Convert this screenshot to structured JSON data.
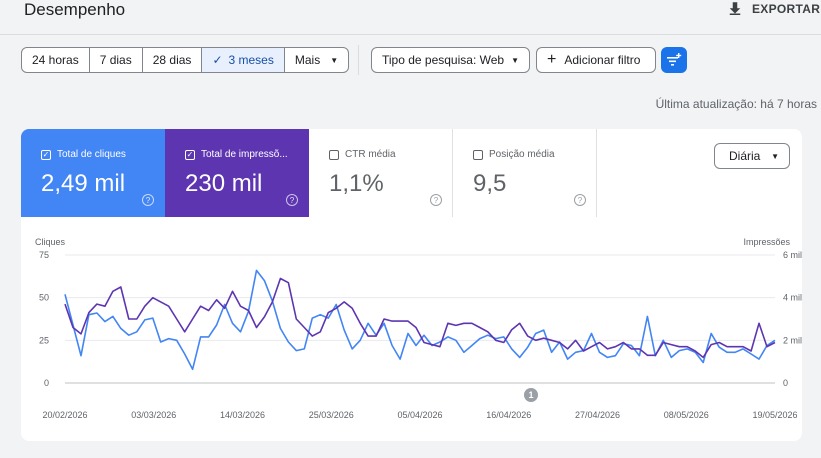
{
  "header": {
    "title": "Desempenho",
    "export_label": "EXPORTAR"
  },
  "date_range": {
    "options": [
      "24 horas",
      "7 dias",
      "28 dias",
      "3 meses",
      "Mais"
    ],
    "selected": "3 meses"
  },
  "filters": {
    "search_type": "Tipo de pesquisa: Web",
    "add_filter": "Adicionar filtro"
  },
  "last_updated": "Última atualização: há 7 horas",
  "metrics": [
    {
      "label": "Total de cliques",
      "value": "2,49 mil",
      "checked": true,
      "color": "#4285f4"
    },
    {
      "label": "Total de impressõ...",
      "value": "230 mil",
      "checked": true,
      "color": "#5e35b1"
    },
    {
      "label": "CTR média",
      "value": "1,1%",
      "checked": false
    },
    {
      "label": "Posição média",
      "value": "9,5",
      "checked": false
    }
  ],
  "granularity": "Diária",
  "annotation_badge": "1",
  "chart_data": {
    "type": "line",
    "left_axis": {
      "label": "Cliques",
      "ticks": [
        "75",
        "50",
        "25",
        "0"
      ],
      "range": [
        0,
        75
      ]
    },
    "right_axis": {
      "label": "Impressões",
      "ticks": [
        "6 mil",
        "4 mil",
        "2 mil",
        "0"
      ],
      "range": [
        0,
        6000
      ]
    },
    "x_tick_labels": [
      "20/02/2026",
      "03/03/2026",
      "14/03/2026",
      "25/03/2026",
      "05/04/2026",
      "16/04/2026",
      "27/04/2026",
      "08/05/2026",
      "19/05/2026"
    ],
    "x_start": "2026-02-20",
    "x_end": "2026-05-19",
    "grid": true,
    "series": [
      {
        "name": "Cliques",
        "axis": "left",
        "color": "#4285f4",
        "values": [
          52,
          34,
          16,
          40,
          41,
          36,
          39,
          32,
          28,
          30,
          37,
          38,
          24,
          26,
          25,
          17,
          8,
          27,
          27,
          34,
          46,
          35,
          30,
          42,
          66,
          60,
          48,
          32,
          24,
          19,
          20,
          38,
          40,
          38,
          46,
          31,
          20,
          25,
          35,
          28,
          35,
          22,
          14,
          29,
          22,
          28,
          22,
          24,
          27,
          25,
          18,
          22,
          26,
          28,
          26,
          27,
          20,
          15,
          21,
          29,
          31,
          18,
          24,
          14,
          18,
          19,
          29,
          18,
          15,
          16,
          23,
          22,
          16,
          39,
          16,
          25,
          15,
          19,
          20,
          18,
          12,
          29,
          21,
          18,
          18,
          20,
          17,
          14,
          22,
          25
        ]
      },
      {
        "name": "Impressões",
        "axis": "right",
        "color": "#5e35b1",
        "values": [
          3700,
          2600,
          2300,
          3300,
          3700,
          3600,
          4300,
          4500,
          3000,
          3000,
          3600,
          4000,
          3800,
          3600,
          3000,
          2400,
          3000,
          3600,
          3400,
          3900,
          3500,
          4300,
          3600,
          3400,
          2600,
          3100,
          3800,
          4900,
          4700,
          3000,
          2600,
          2200,
          2400,
          3300,
          3500,
          3800,
          3500,
          2800,
          2200,
          2200,
          3000,
          2900,
          2900,
          2900,
          2600,
          1900,
          1800,
          1700,
          2800,
          2700,
          2800,
          2800,
          2600,
          2400,
          2000,
          1900,
          2500,
          2800,
          2200,
          2000,
          2100,
          2000,
          1900,
          1600,
          2000,
          1500,
          1700,
          1900,
          1600,
          1700,
          1900,
          1600,
          1600,
          1300,
          1300,
          1900,
          1800,
          1700,
          1700,
          1500,
          1200,
          1800,
          1900,
          1700,
          1700,
          1700,
          1500,
          2800,
          1700,
          1900
        ]
      }
    ]
  }
}
